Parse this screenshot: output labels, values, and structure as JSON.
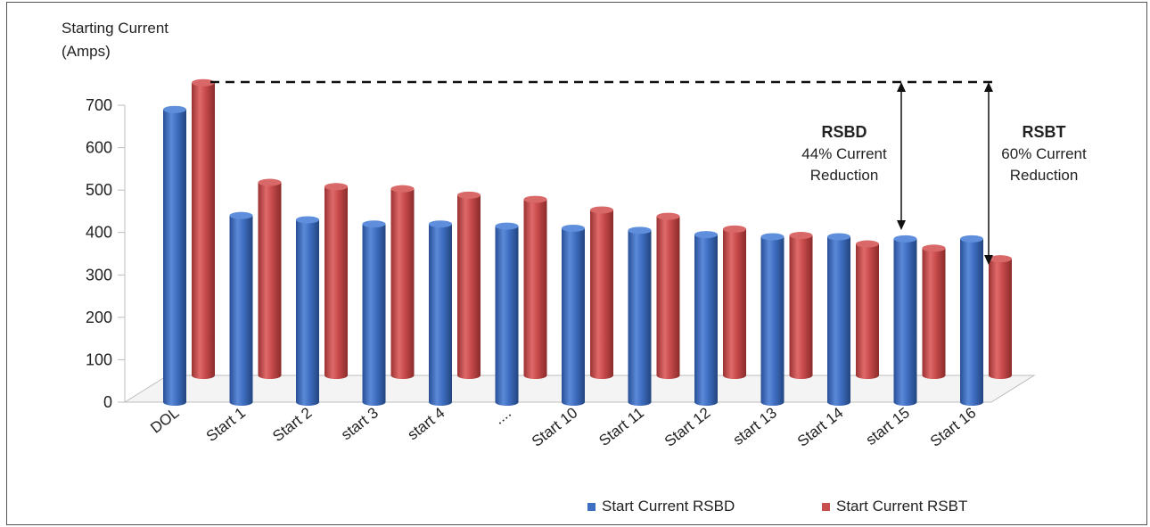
{
  "chart_data": {
    "type": "bar",
    "style": "3d-cylinder",
    "ylabel_line1": "Starting Current",
    "ylabel_line2": "(Amps)",
    "ylim": [
      0,
      700
    ],
    "yticks": [
      0,
      100,
      200,
      300,
      400,
      500,
      600,
      700
    ],
    "categories": [
      "DOL",
      "Start 1",
      "Start 2",
      "start 3",
      "start 4",
      "....",
      "Start 10",
      "Start 11",
      "Start 12",
      "start 13",
      "Start 14",
      "start 15",
      "Start 16"
    ],
    "series": [
      {
        "name": "Start Current RSBD",
        "color": "#3d6fc3",
        "values": [
          690,
          440,
          430,
          420,
          420,
          415,
          410,
          405,
          395,
          390,
          390,
          385,
          385
        ]
      },
      {
        "name": "Start Current RSBT",
        "color": "#c94e4e",
        "values": [
          690,
          455,
          445,
          440,
          425,
          415,
          390,
          375,
          345,
          330,
          310,
          300,
          275
        ]
      }
    ],
    "grid": false,
    "legend": "bottom-right",
    "annotations": [
      {
        "title": "RSBD",
        "line1": "44% Current",
        "line2": "Reduction"
      },
      {
        "title": "RSBT",
        "line1": "60% Current",
        "line2": "Reduction"
      }
    ]
  }
}
